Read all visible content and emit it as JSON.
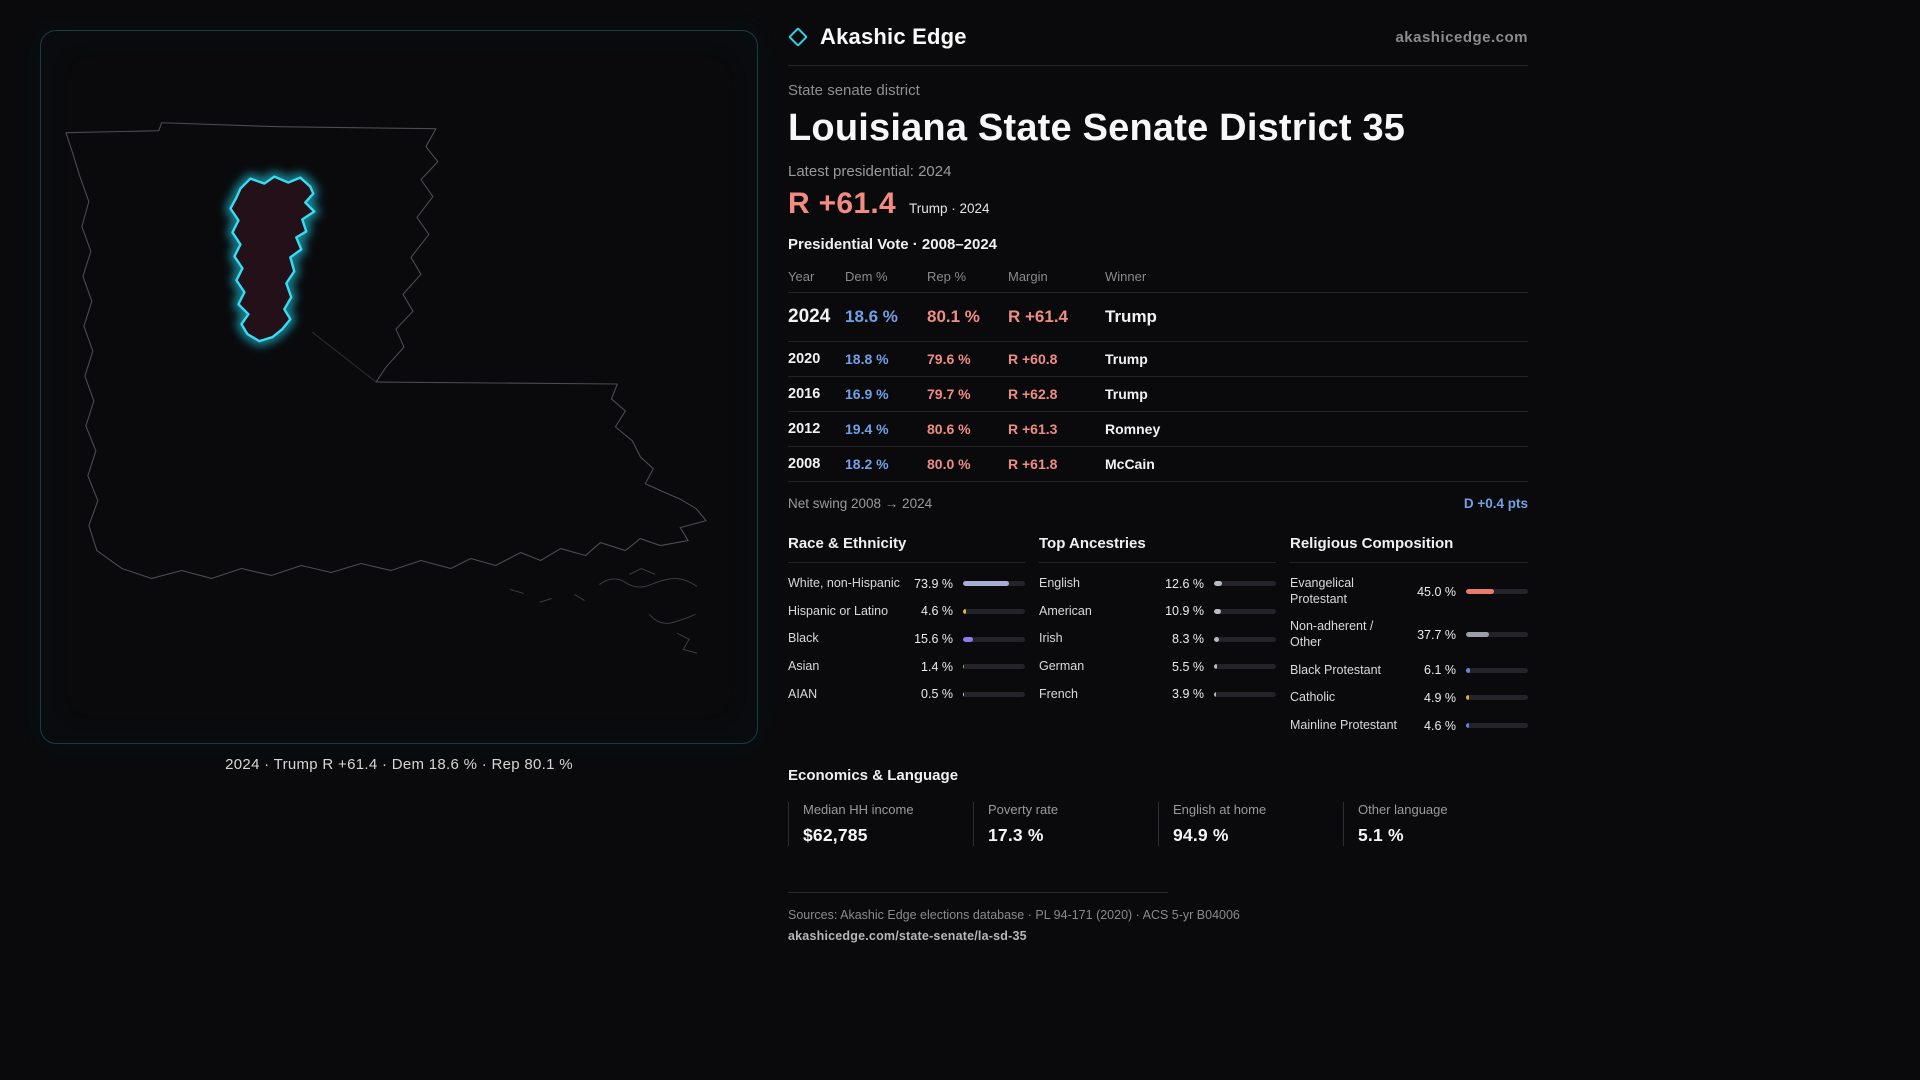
{
  "brand": {
    "name": "Akashic Edge",
    "site": "akashicedge.com"
  },
  "map": {
    "caption": "2024 · Trump R +61.4 · Dem 18.6 % · Rep 80.1 %"
  },
  "header": {
    "kicker": "State senate district",
    "title": "Louisiana State Senate District 35",
    "latest": "Latest presidential: 2024",
    "margin": "R +61.4",
    "margin_detail": "Trump · 2024"
  },
  "table": {
    "title": "Presidential Vote · 2008–2024",
    "columns": [
      "Year",
      "Dem %",
      "Rep %",
      "Margin",
      "Winner"
    ],
    "rows": [
      {
        "year": "2024",
        "dem": "18.6 %",
        "rep": "80.1 %",
        "margin": "R +61.4",
        "winner": "Trump"
      },
      {
        "year": "2020",
        "dem": "18.8 %",
        "rep": "79.6 %",
        "margin": "R +60.8",
        "winner": "Trump"
      },
      {
        "year": "2016",
        "dem": "16.9 %",
        "rep": "79.7 %",
        "margin": "R +62.8",
        "winner": "Trump"
      },
      {
        "year": "2012",
        "dem": "19.4 %",
        "rep": "80.6 %",
        "margin": "R +61.3",
        "winner": "Romney"
      },
      {
        "year": "2008",
        "dem": "18.2 %",
        "rep": "80.0 %",
        "margin": "R +61.8",
        "winner": "McCain"
      }
    ],
    "net_swing_label": "Net swing 2008 → 2024",
    "net_swing_value": "D +0.4 pts"
  },
  "race": {
    "title": "Race & Ethnicity",
    "rows": [
      {
        "label": "White, non-Hispanic",
        "value": "73.9 %",
        "pct": 73.9,
        "color": "#a9aed6"
      },
      {
        "label": "Hispanic or Latino",
        "value": "4.6 %",
        "pct": 4.6,
        "color": "#e0b43f"
      },
      {
        "label": "Black",
        "value": "15.6 %",
        "pct": 15.6,
        "color": "#8d7bed"
      },
      {
        "label": "Asian",
        "value": "1.4 %",
        "pct": 1.4,
        "color": "#7cc488"
      },
      {
        "label": "AIAN",
        "value": "0.5 %",
        "pct": 0.5,
        "color": "#c9ced6"
      }
    ]
  },
  "ancestries": {
    "title": "Top Ancestries",
    "rows": [
      {
        "label": "English",
        "value": "12.6 %",
        "pct": 12.6,
        "color": "#b6bbc4"
      },
      {
        "label": "American",
        "value": "10.9 %",
        "pct": 10.9,
        "color": "#b6bbc4"
      },
      {
        "label": "Irish",
        "value": "8.3 %",
        "pct": 8.3,
        "color": "#b6bbc4"
      },
      {
        "label": "German",
        "value": "5.5 %",
        "pct": 5.5,
        "color": "#b6bbc4"
      },
      {
        "label": "French",
        "value": "3.9 %",
        "pct": 3.9,
        "color": "#b6bbc4"
      }
    ]
  },
  "religion": {
    "title": "Religious Composition",
    "rows": [
      {
        "label": "Evangelical Protestant",
        "value": "45.0 %",
        "pct": 45.0,
        "color": "#e87a70"
      },
      {
        "label": "Non-adherent / Other",
        "value": "37.7 %",
        "pct": 37.7,
        "color": "#9aa0a8"
      },
      {
        "label": "Black Protestant",
        "value": "6.1 %",
        "pct": 6.1,
        "color": "#5c8fd6"
      },
      {
        "label": "Catholic",
        "value": "4.9 %",
        "pct": 4.9,
        "color": "#e0b43f"
      },
      {
        "label": "Mainline Protestant",
        "value": "4.6 %",
        "pct": 4.6,
        "color": "#6c7fe0"
      }
    ]
  },
  "economics": {
    "title": "Economics & Language",
    "stats": [
      {
        "label": "Median HH income",
        "value": "$62,785"
      },
      {
        "label": "Poverty rate",
        "value": "17.3 %"
      },
      {
        "label": "English at home",
        "value": "94.9 %"
      },
      {
        "label": "Other language",
        "value": "5.1 %"
      }
    ]
  },
  "footer": {
    "sources": "Sources: Akashic Edge elections database · PL 94-171 (2020) · ACS 5-yr B04006",
    "permalink": "akashicedge.com/state-senate/la-sd-35"
  },
  "colors": {
    "accent": "#2fd3e8",
    "dem": "#72a0e5",
    "rep": "#ef8d85"
  }
}
